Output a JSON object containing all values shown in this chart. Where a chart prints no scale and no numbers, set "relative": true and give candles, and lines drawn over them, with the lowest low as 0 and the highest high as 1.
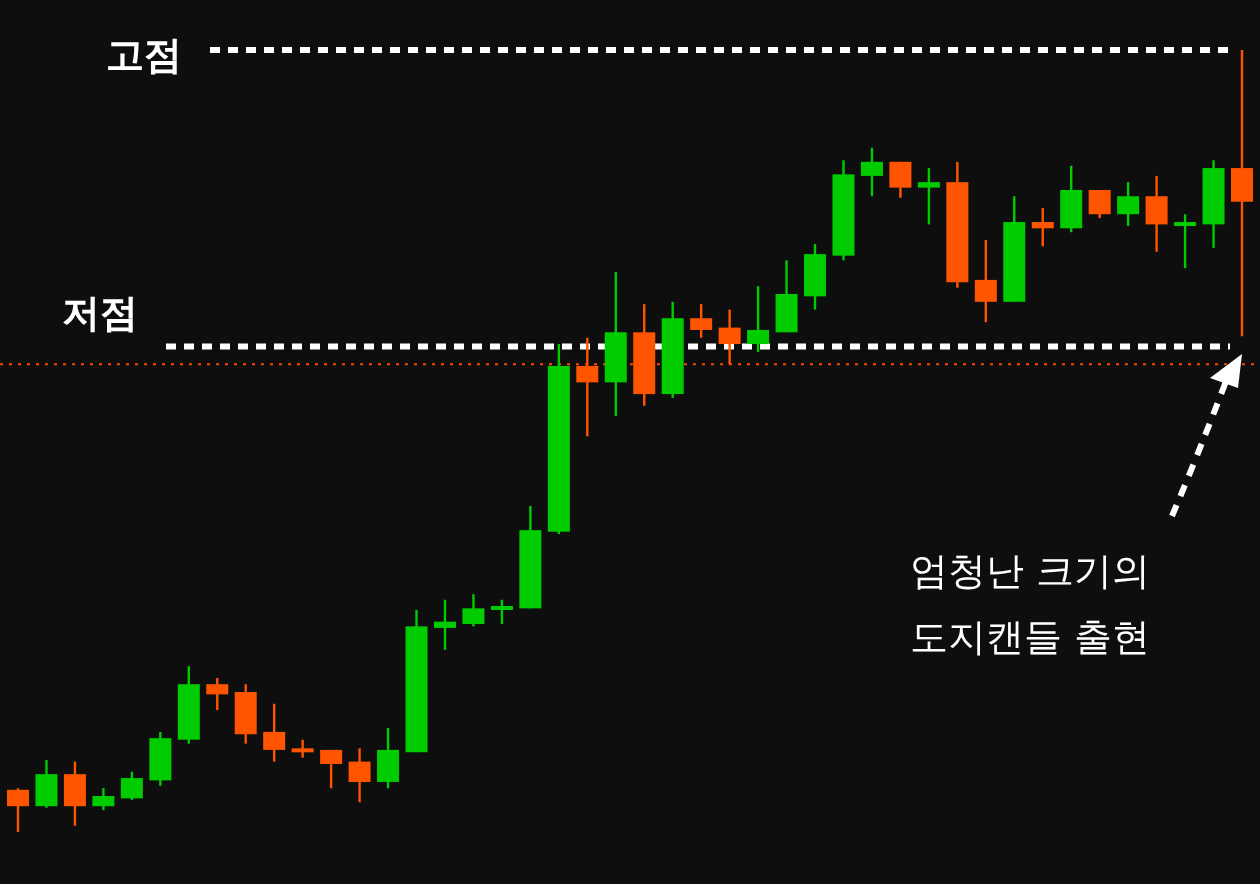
{
  "chart_data": {
    "type": "candlestick",
    "relative": true,
    "categories": [
      null,
      null,
      null,
      null,
      null,
      null,
      null,
      null,
      null,
      null,
      null,
      null,
      null,
      null,
      null,
      null,
      null,
      null,
      null,
      null,
      null,
      null,
      null,
      null,
      null,
      null,
      null,
      null,
      null,
      null,
      null,
      null,
      null,
      null,
      null,
      null,
      null,
      null,
      null,
      null,
      null,
      null,
      null,
      null
    ],
    "ohlc": [
      [
        0.054,
        0.056,
        0,
        0.033
      ],
      [
        0.033,
        0.092,
        0.031,
        0.074
      ],
      [
        0.074,
        0.09,
        0.008,
        0.033
      ],
      [
        0.033,
        0.056,
        0.028,
        0.046
      ],
      [
        0.043,
        0.077,
        0.041,
        0.069
      ],
      [
        0.066,
        0.128,
        0.059,
        0.12
      ],
      [
        0.118,
        0.212,
        0.113,
        0.189
      ],
      [
        0.189,
        0.197,
        0.156,
        0.176
      ],
      [
        0.179,
        0.189,
        0.113,
        0.125
      ],
      [
        0.128,
        0.164,
        0.09,
        0.105
      ],
      [
        0.107,
        0.118,
        0.095,
        0.102
      ],
      [
        0.105,
        0.105,
        0.056,
        0.087
      ],
      [
        0.09,
        0.107,
        0.038,
        0.064
      ],
      [
        0.064,
        0.133,
        0.056,
        0.105
      ],
      [
        0.102,
        0.284,
        0.102,
        0.263
      ],
      [
        0.261,
        0.297,
        0.233,
        0.269
      ],
      [
        0.266,
        0.304,
        0.263,
        0.286
      ],
      [
        0.284,
        0.297,
        0.266,
        0.289
      ],
      [
        0.286,
        0.417,
        0.286,
        0.386
      ],
      [
        0.384,
        0.624,
        0.381,
        0.596
      ],
      [
        0.596,
        0.632,
        0.506,
        0.575
      ],
      [
        0.575,
        0.716,
        0.532,
        0.639
      ],
      [
        0.639,
        0.675,
        0.545,
        0.56
      ],
      [
        0.56,
        0.678,
        0.555,
        0.657
      ],
      [
        0.657,
        0.675,
        0.632,
        0.642
      ],
      [
        0.645,
        0.668,
        0.598,
        0.624
      ],
      [
        0.624,
        0.698,
        0.614,
        0.642
      ],
      [
        0.639,
        0.731,
        0.639,
        0.688
      ],
      [
        0.685,
        0.752,
        0.668,
        0.739
      ],
      [
        0.737,
        0.859,
        0.731,
        0.841
      ],
      [
        0.839,
        0.875,
        0.813,
        0.857
      ],
      [
        0.857,
        0.857,
        0.811,
        0.824
      ],
      [
        0.824,
        0.849,
        0.777,
        0.831
      ],
      [
        0.831,
        0.857,
        0.696,
        0.703
      ],
      [
        0.706,
        0.757,
        0.652,
        0.678
      ],
      [
        0.678,
        0.813,
        0.678,
        0.78
      ],
      [
        0.78,
        0.798,
        0.749,
        0.772
      ],
      [
        0.772,
        0.852,
        0.767,
        0.821
      ],
      [
        0.821,
        0.821,
        0.785,
        0.79
      ],
      [
        0.79,
        0.831,
        0.775,
        0.813
      ],
      [
        0.813,
        0.839,
        0.742,
        0.777
      ],
      [
        0.777,
        0.79,
        0.721,
        0.78
      ],
      [
        0.777,
        0.859,
        0.747,
        0.849
      ],
      [
        0.849,
        1,
        0.634,
        0.806
      ]
    ],
    "colors": [
      "#ff5500",
      "#00cc00",
      "#ff5500",
      "#00cc00",
      "#00cc00",
      "#00cc00",
      "#00cc00",
      "#ff5500",
      "#ff5500",
      "#ff5500",
      "#ff5500",
      "#ff5500",
      "#ff5500",
      "#00cc00",
      "#00cc00",
      "#00cc00",
      "#00cc00",
      "#00cc00",
      "#00cc00",
      "#00cc00",
      "#ff5500",
      "#00cc00",
      "#ff5500",
      "#00cc00",
      "#ff5500",
      "#ff5500",
      "#00cc00",
      "#00cc00",
      "#00cc00",
      "#00cc00",
      "#00cc00",
      "#ff5500",
      "#00cc00",
      "#ff5500",
      "#ff5500",
      "#00cc00",
      "#ff5500",
      "#00cc00",
      "#ff5500",
      "#00cc00",
      "#ff5500",
      "#00cc00",
      "#00cc00",
      "#ff5500"
    ],
    "ref_lines": [
      {
        "axis": "y",
        "value": 1,
        "label": "고점",
        "color": "#ffffff",
        "line_style": "dashed"
      },
      {
        "axis": "y",
        "value": 0.621,
        "label": "저점",
        "color": "#ffffff",
        "line_style": "dashed"
      },
      {
        "axis": "y",
        "value": 0.598,
        "color": "#ff4500",
        "line_style": "dotted"
      }
    ],
    "annotations": [
      "엄청난 크기의\n도지캔들 출현"
    ]
  }
}
